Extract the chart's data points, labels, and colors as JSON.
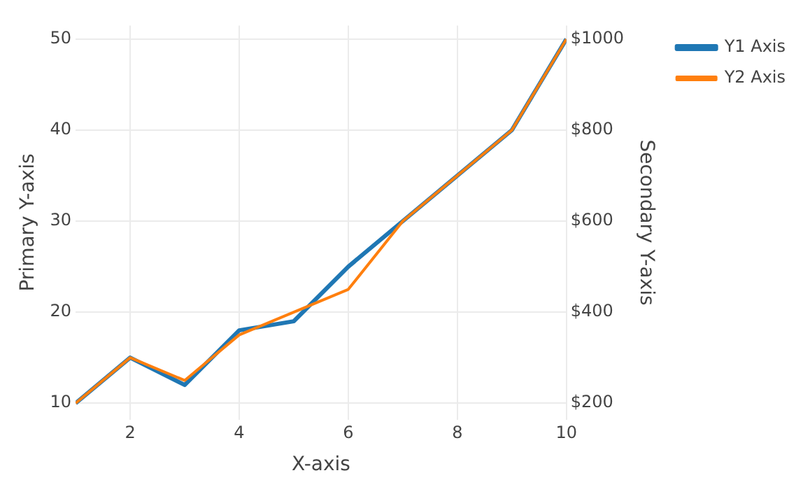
{
  "chart_data": {
    "type": "line",
    "xlabel": "X-axis",
    "ylabel": "Primary Y-axis",
    "y2label": "Secondary Y-axis",
    "x": [
      1,
      2,
      3,
      4,
      5,
      6,
      7,
      8,
      9,
      10
    ],
    "series": [
      {
        "name": "Y1 Axis",
        "color": "#1f77b4",
        "values": [
          10,
          15,
          12,
          18,
          19,
          25,
          30,
          35,
          40,
          50
        ]
      },
      {
        "name": "Y2 Axis",
        "color": "#ff7f0e",
        "axis": "y2",
        "values": [
          200,
          300,
          250,
          350,
          400,
          450,
          600,
          700,
          800,
          1000
        ]
      }
    ],
    "xlim": [
      1,
      10
    ],
    "xticks": [
      2,
      4,
      6,
      8,
      10
    ],
    "ylim": [
      8.2,
      51.5
    ],
    "yticks": [
      10,
      20,
      30,
      40,
      50
    ],
    "y2lim": [
      164,
      1030
    ],
    "y2ticks": [
      {
        "value": 200,
        "label": "$200"
      },
      {
        "value": 400,
        "label": "$400"
      },
      {
        "value": 600,
        "label": "$600"
      },
      {
        "value": 800,
        "label": "$800"
      },
      {
        "value": 1000,
        "label": "$1000"
      }
    ],
    "grid": true,
    "legend": "top right",
    "marker": "none",
    "line_style": "solid"
  }
}
